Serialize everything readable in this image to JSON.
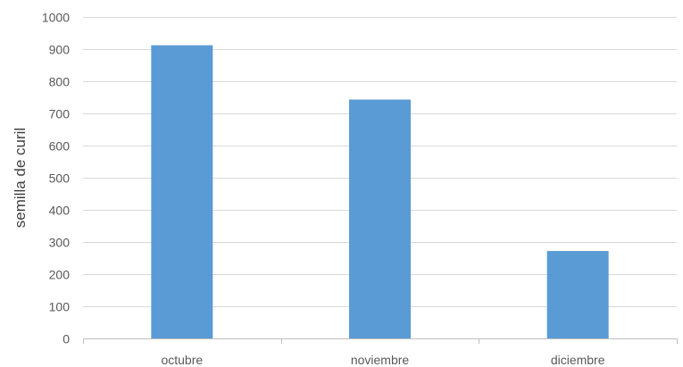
{
  "chart_data": {
    "type": "bar",
    "categories": [
      "octubre",
      "noviembre",
      "diciembre"
    ],
    "values": [
      912,
      743,
      272
    ],
    "ylabel": "semilla de curil",
    "xlabel": "",
    "ylim": [
      0,
      1000
    ],
    "yticks": [
      0,
      100,
      200,
      300,
      400,
      500,
      600,
      700,
      800,
      900,
      1000
    ],
    "grid": true,
    "legend": "none",
    "colors": {
      "bar": "#5b9bd5",
      "grid": "#d9d9d9",
      "axis": "#bfbfbf"
    }
  }
}
